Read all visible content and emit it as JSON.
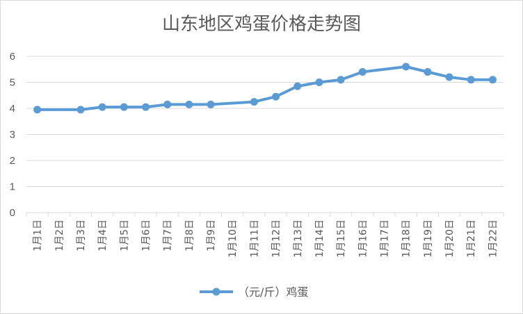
{
  "chart_data": {
    "type": "line",
    "title": "山东地区鸡蛋价格走势图",
    "categories": [
      "1月1日",
      "1月2日",
      "1月3日",
      "1月4日",
      "1月5日",
      "1月6日",
      "1月7日",
      "1月8日",
      "1月9日",
      "1月10日",
      "1月11日",
      "1月12日",
      "1月13日",
      "1月14日",
      "1月15日",
      "1月16日",
      "1月17日",
      "1月18日",
      "1月19日",
      "1月20日",
      "1月21日",
      "1月22日"
    ],
    "series": [
      {
        "name": "（元/斤）鸡蛋",
        "color": "#5b9bd5",
        "values": [
          3.95,
          null,
          3.95,
          4.05,
          4.05,
          4.05,
          4.15,
          4.15,
          4.15,
          null,
          4.25,
          4.45,
          4.85,
          5.0,
          5.1,
          5.4,
          null,
          5.6,
          5.4,
          5.2,
          5.1,
          5.1
        ]
      }
    ],
    "ylim": [
      0,
      6
    ],
    "yticks": [
      0,
      1,
      2,
      3,
      4,
      5,
      6
    ],
    "grid": true,
    "legend": "bottom"
  }
}
